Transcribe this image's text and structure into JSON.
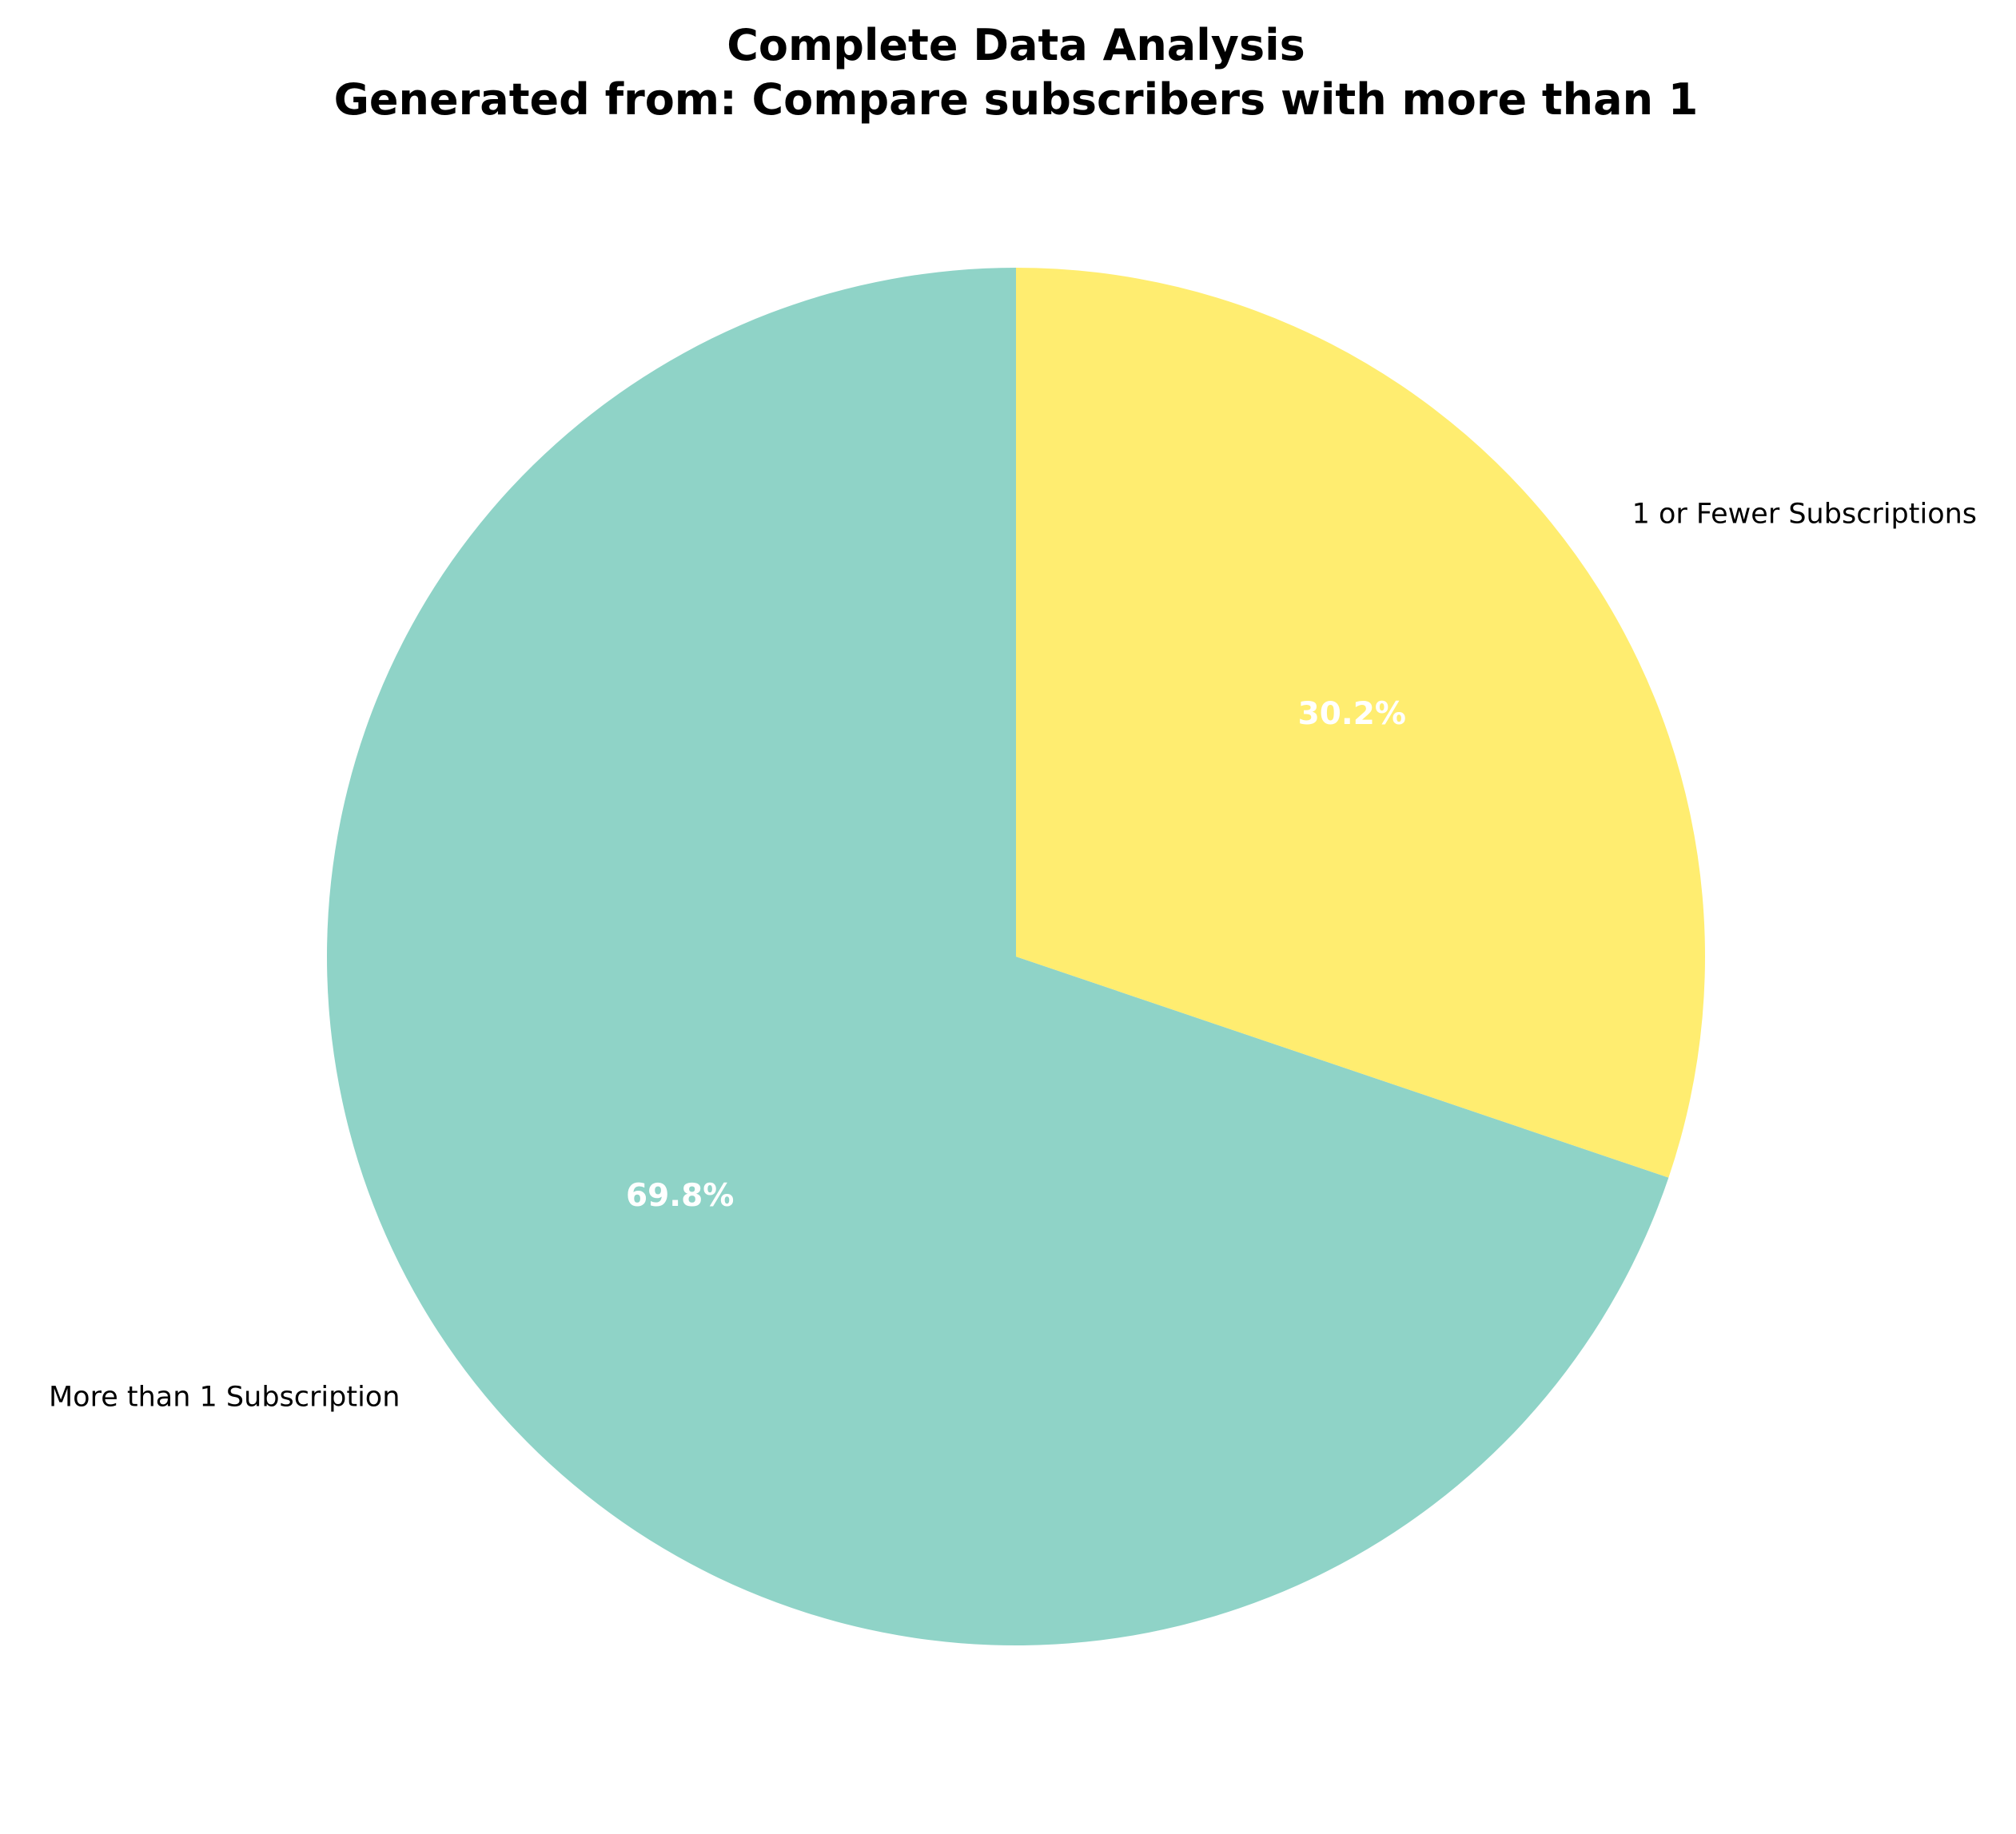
{
  "chart_data": {
    "type": "pie",
    "title": "Complete Data Analysis",
    "subtitle": "Generated from: Compare subscribers with more than 1",
    "slices": [
      {
        "label": "More than 1 Subscription",
        "value": 69.8,
        "pct_label": "69.8%",
        "color": "#8fd3c7"
      },
      {
        "label": "1 or Fewer Subscriptions",
        "value": 30.2,
        "pct_label": "30.2%",
        "color": "#ffed70"
      }
    ],
    "start_angle_deg": 90,
    "direction": "counterclockwise",
    "legend": "none"
  }
}
